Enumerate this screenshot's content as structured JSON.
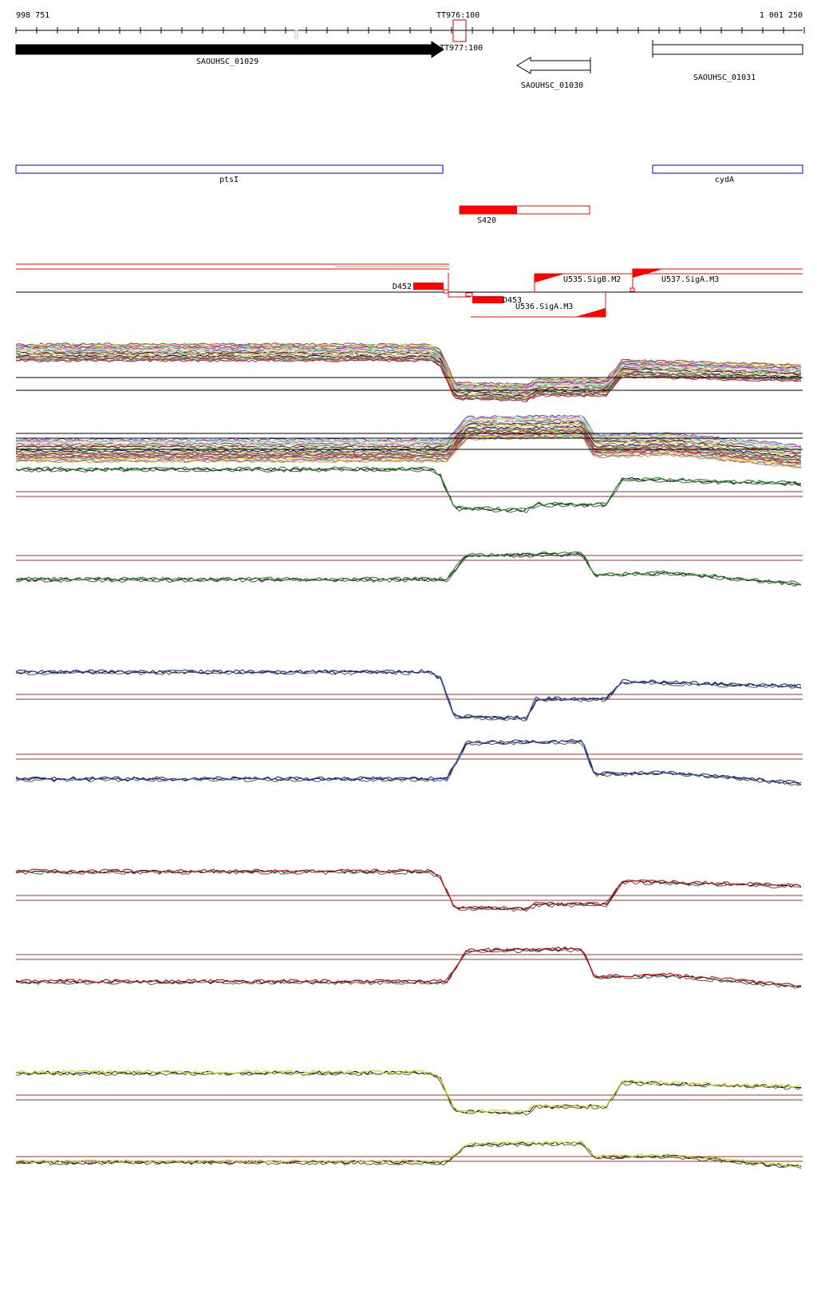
{
  "ruler": {
    "start_label": "998 751",
    "end_label": "1 001 250",
    "terminators": [
      {
        "label": "TT976:100"
      },
      {
        "label": "TT977:100"
      }
    ]
  },
  "genes": [
    {
      "label": "SAOUHSC_01029",
      "strand": "+",
      "fill": "#000000"
    },
    {
      "label": "SAOUHSC_01030",
      "strand": "-",
      "fill": "#ffffff"
    },
    {
      "label": "SAOUHSC_01031",
      "strand": "+",
      "fill": "#ffffff"
    }
  ],
  "operons": [
    {
      "label": "ptsI",
      "color": "#0000cc"
    },
    {
      "label": "cydA",
      "color": "#0000cc"
    }
  ],
  "srna": {
    "label": "S420",
    "color": "#ff0000"
  },
  "transcripts": [
    {
      "label": "D452",
      "color": "#ff0000"
    },
    {
      "label": "D453",
      "color": "#ff0000"
    },
    {
      "label": "U535.SigB.M2",
      "color": "#ff0000"
    },
    {
      "label": "U536.SigA.M3",
      "color": "#ff0000"
    },
    {
      "label": "U537.SigA.M3",
      "color": "#ff0000"
    }
  ],
  "tracks": {
    "all_conditions_color": "multicolor",
    "groups": [
      {
        "name": "green",
        "color": "#1a9a1a"
      },
      {
        "name": "blue",
        "color": "#1f3fbf"
      },
      {
        "name": "red",
        "color": "#e01010"
      },
      {
        "name": "yellow",
        "color": "#d8d800"
      }
    ],
    "threshold_color": "#a03030"
  }
}
